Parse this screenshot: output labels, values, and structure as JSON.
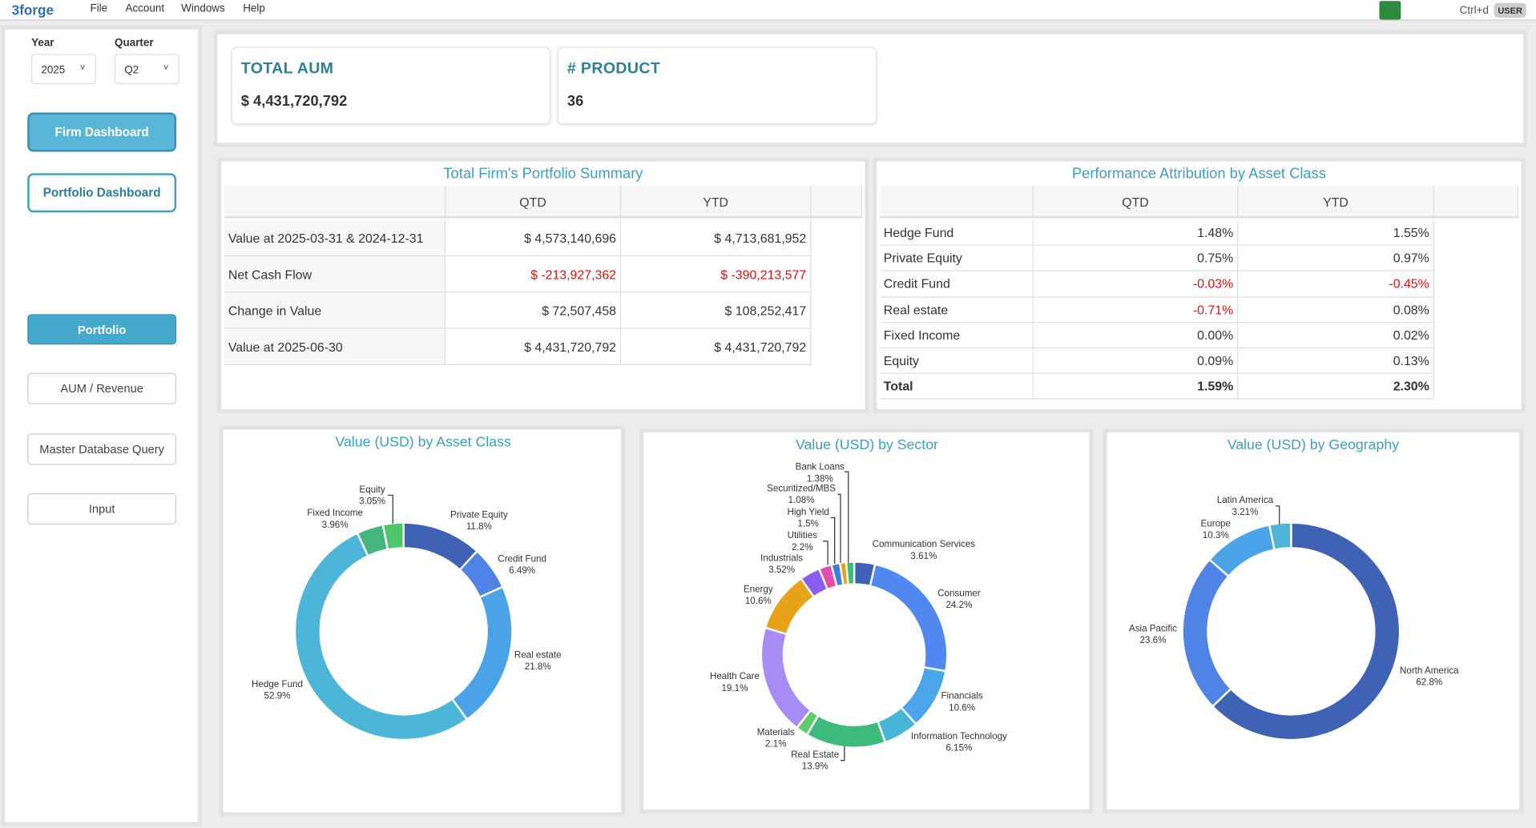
{
  "menu": {
    "logo": "3forge",
    "items": [
      "File",
      "Account",
      "Windows",
      "Help"
    ],
    "shortcut": "Ctrl+d",
    "user": "USER"
  },
  "filters": [
    {
      "label": "Year",
      "value": "2025"
    },
    {
      "label": "Quarter",
      "value": "Q2"
    }
  ],
  "nav": [
    "Firm Dashboard",
    "Portfolio Dashboard",
    "Portfolio",
    "AUM / Revenue",
    "Master Database Query",
    "Input"
  ],
  "kpis": [
    {
      "title": "TOTAL AUM",
      "value": "$ 4,431,720,792"
    },
    {
      "title": "# PRODUCT",
      "value": "36"
    }
  ],
  "tables": [
    {
      "title": "Total Firm's Portfolio Summary",
      "columns": [
        "QTD",
        "YTD"
      ],
      "rows": [
        [
          "Value at 2025-03-31 & 2024-12-31",
          "$ 4,573,140,696",
          "$ 4,713,681,952"
        ],
        [
          "Net Cash Flow",
          "$ -213,927,362",
          "$ -390,213,577"
        ],
        [
          "Change in Value",
          "$ 72,507,458",
          "$ 108,252,417"
        ],
        [
          "Value at 2025-06-30",
          "$ 4,431,720,792",
          "$ 4,431,720,792"
        ]
      ]
    },
    {
      "title": "Performance Attribution by Asset Class",
      "columns": [
        "QTD",
        "YTD"
      ],
      "rows": [
        [
          "Hedge Fund",
          "1.48%",
          "1.55%"
        ],
        [
          "Private Equity",
          "0.75%",
          "0.97%"
        ],
        [
          "Credit Fund",
          "-0.03%",
          "-0.45%"
        ],
        [
          "Real estate",
          "-0.71%",
          "0.08%"
        ],
        [
          "Fixed Income",
          "0.00%",
          "0.02%"
        ],
        [
          "Equity",
          "0.09%",
          "0.13%"
        ],
        [
          "Total",
          "1.59%",
          "2.30%"
        ]
      ]
    }
  ],
  "chart_data": [
    {
      "type": "donut",
      "title": "Value (USD) by Asset Class",
      "categories": [
        "Private Equity",
        "Credit Fund",
        "Real estate",
        "Hedge Fund",
        "Fixed Income",
        "Equity"
      ],
      "values": [
        11.8,
        6.49,
        21.8,
        52.9,
        3.96,
        3.05
      ],
      "value_labels": [
        "11.8%",
        "6.49%",
        "21.8%",
        "52.9%",
        "3.96%",
        "3.05%"
      ],
      "colors": [
        "#3f62b4",
        "#4f83e6",
        "#4aa3e6",
        "#4db6d8",
        "#45b67c",
        "#4cc76a"
      ]
    },
    {
      "type": "donut",
      "title": "Value (USD) by Sector",
      "categories": [
        "Communication Services",
        "Consumer",
        "Financials",
        "Information Technology",
        "Real Estate",
        "Materials",
        "Health Care",
        "Energy",
        "Industrials",
        "Utilities",
        "High Yield",
        "Securitized/MBS",
        "Bank Loans"
      ],
      "values": [
        3.61,
        24.2,
        10.6,
        6.15,
        13.9,
        2.1,
        19.1,
        10.6,
        3.52,
        2.2,
        1.5,
        1.08,
        1.38
      ],
      "value_labels": [
        "3.61%",
        "24.2%",
        "10.6%",
        "6.15%",
        "13.9%",
        "2.1%",
        "19.1%",
        "10.6%",
        "3.52%",
        "2.2%",
        "1.5%",
        "1.08%",
        "1.38%"
      ],
      "colors": [
        "#3f62b4",
        "#5088f0",
        "#4aa6e8",
        "#46b5d6",
        "#3dba7c",
        "#5ccd6a",
        "#a78cf5",
        "#e8a21a",
        "#8b5cf0",
        "#e04cb0",
        "#3f7fd8",
        "#e8a21a",
        "#3dba7c"
      ]
    },
    {
      "type": "donut",
      "title": "Value (USD) by Geography",
      "categories": [
        "North America",
        "Asia Pacific",
        "Europe",
        "Latin America"
      ],
      "values": [
        62.8,
        23.6,
        10.3,
        3.21
      ],
      "value_labels": [
        "62.8%",
        "23.6%",
        "10.3%",
        "3.21%"
      ],
      "colors": [
        "#3f62b4",
        "#4f83e6",
        "#4aa3e6",
        "#4db6d8"
      ]
    }
  ]
}
